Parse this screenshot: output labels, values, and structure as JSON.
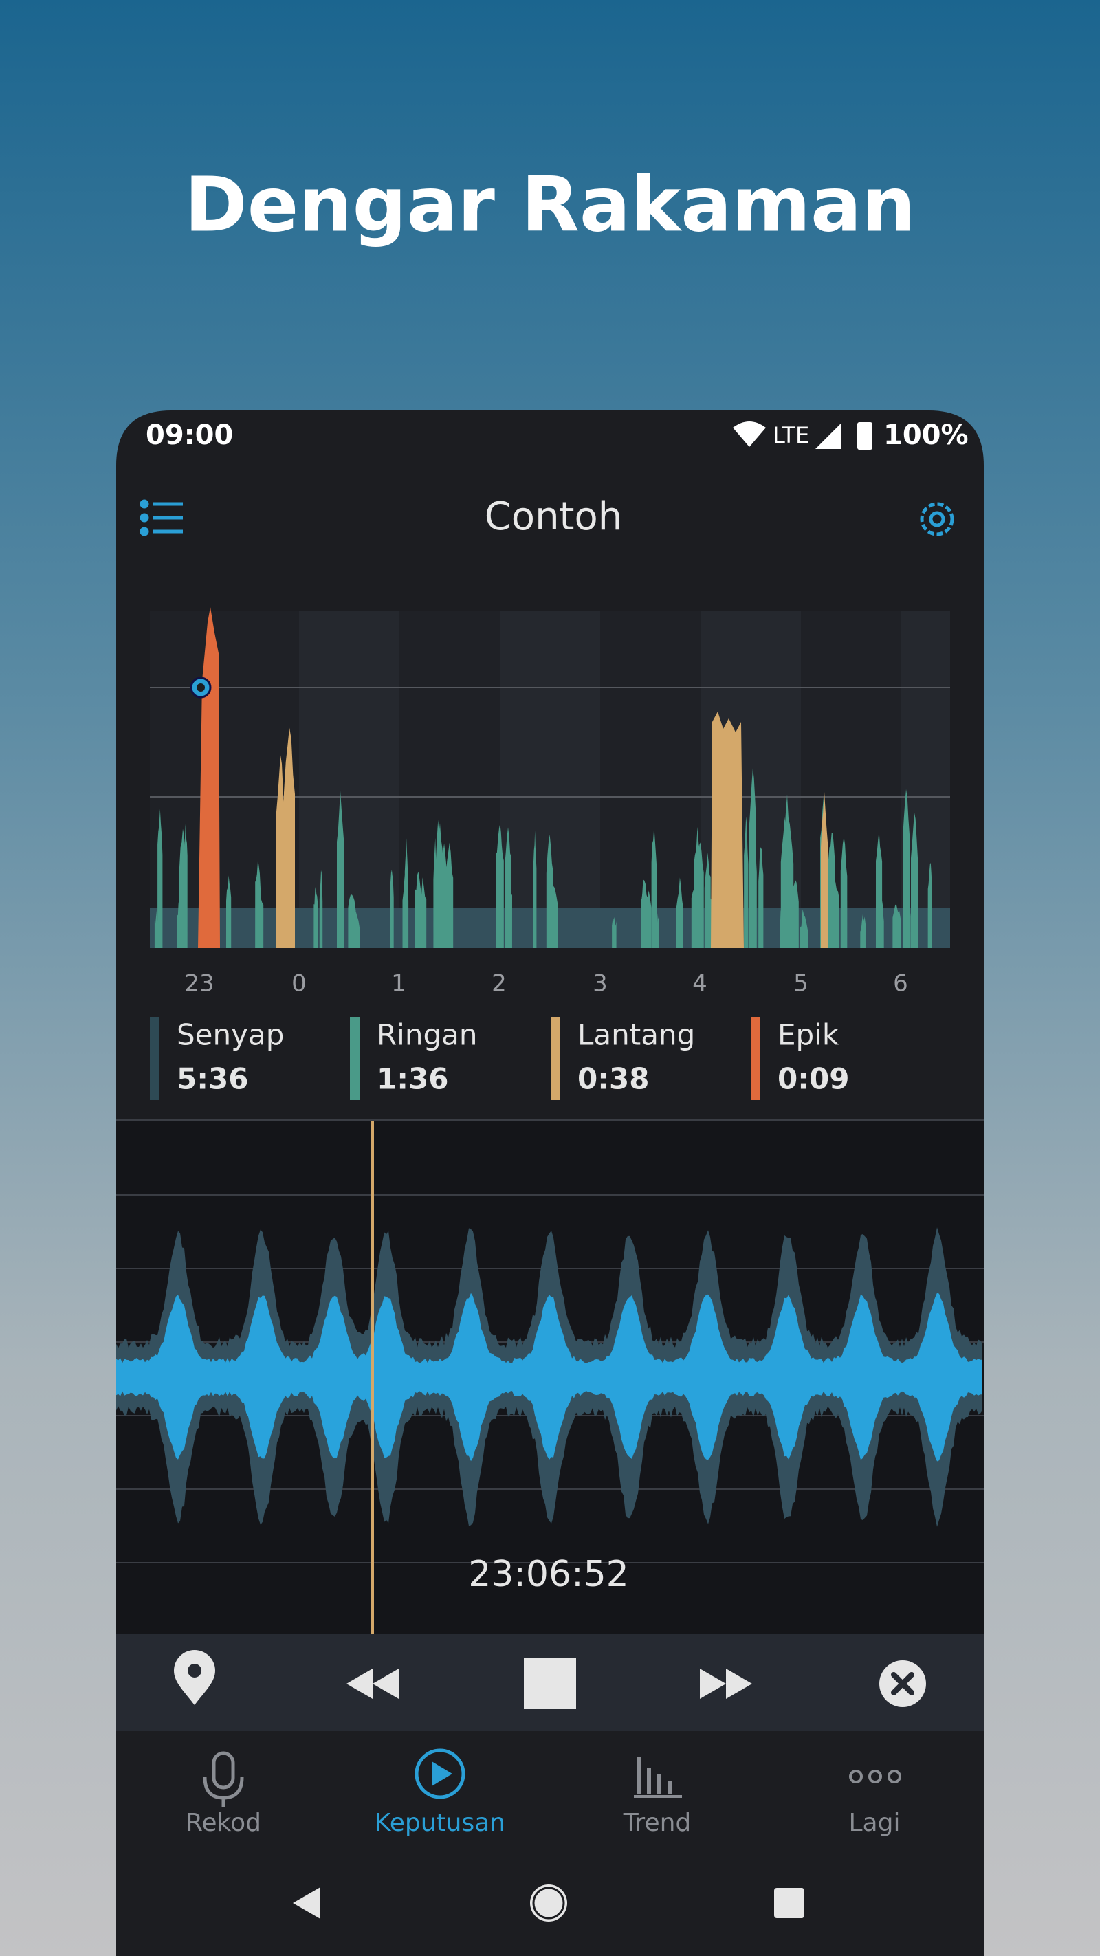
{
  "header": {
    "title": "Dengar Rakaman"
  },
  "status_bar": {
    "time": "09:00",
    "network": "LTE",
    "battery": "100%"
  },
  "app_bar": {
    "title": "Contoh"
  },
  "chart": {
    "x_labels": [
      "23",
      "0",
      "1",
      "2",
      "3",
      "4",
      "5",
      "6"
    ]
  },
  "legend": [
    {
      "name": "Senyap",
      "duration": "5:36"
    },
    {
      "name": "Ringan",
      "duration": "1:36"
    },
    {
      "name": "Lantang",
      "duration": "0:38"
    },
    {
      "name": "Epik",
      "duration": "0:09"
    }
  ],
  "player": {
    "timestamp": "23:06:52"
  },
  "nav": [
    {
      "label": "Rekod"
    },
    {
      "label": "Keputusan"
    },
    {
      "label": "Trend"
    },
    {
      "label": "Lagi"
    }
  ]
}
